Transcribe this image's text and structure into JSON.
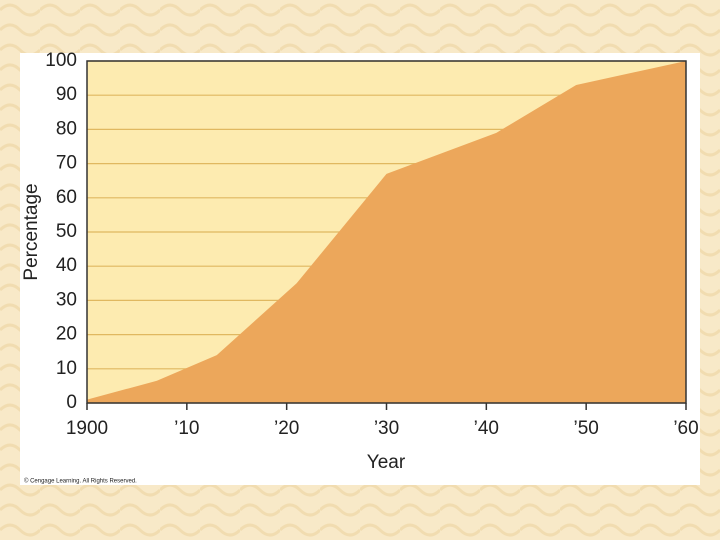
{
  "chart_data": {
    "type": "area",
    "x": [
      1900,
      1907,
      1913,
      1921,
      1930,
      1941,
      1949,
      1960
    ],
    "values": [
      1,
      6.5,
      14,
      35,
      67,
      79,
      93,
      100
    ],
    "color": "#eca75b",
    "xlim": [
      1900,
      1960
    ],
    "xticks": [
      1900,
      {
        "value": 1910,
        "label": "’10"
      },
      {
        "value": 1920,
        "label": "’20"
      },
      {
        "value": 1930,
        "label": "’30"
      },
      {
        "value": 1940,
        "label": "’40"
      },
      {
        "value": 1950,
        "label": "’50"
      },
      {
        "value": 1960,
        "label": "’60"
      }
    ],
    "ylim": [
      0,
      100
    ],
    "yticks": [
      0,
      10,
      20,
      30,
      40,
      50,
      60,
      70,
      80,
      90,
      100
    ],
    "grid": true,
    "x_label": "Year",
    "y_label": "Percentage",
    "credit": "© Cengage Learning. All Rights Reserved."
  }
}
